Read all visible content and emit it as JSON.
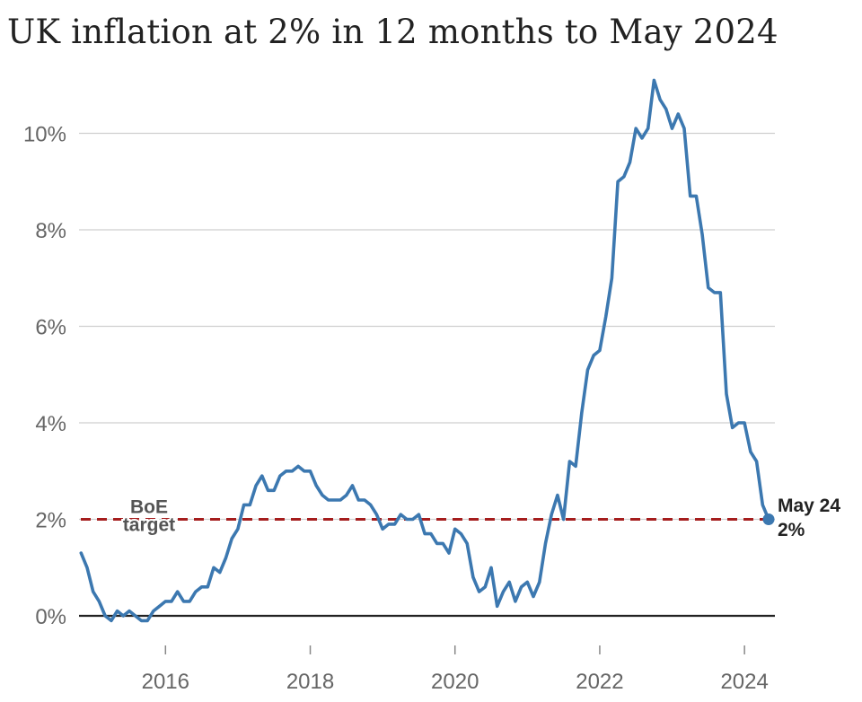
{
  "title": "UK inflation at 2% in 12 months to May 2024",
  "chart_data": {
    "type": "line",
    "title": "UK inflation at 2% in 12 months to May 2024",
    "xlabel": "",
    "ylabel": "",
    "x_range": [
      "2014-11",
      "2024-05"
    ],
    "ylim": [
      -0.4,
      11.2
    ],
    "y_ticks": [
      0,
      2,
      4,
      6,
      8,
      10
    ],
    "y_tick_labels": [
      "0%",
      "2%",
      "4%",
      "6%",
      "8%",
      "10%"
    ],
    "x_ticks": [
      2016,
      2018,
      2020,
      2022,
      2024
    ],
    "x_tick_labels": [
      "2016",
      "2018",
      "2020",
      "2022",
      "2024"
    ],
    "grid": true,
    "series": [
      {
        "color": "#3c78b0",
        "points": [
          [
            "2014-11",
            1.3
          ],
          [
            "2014-12",
            1.0
          ],
          [
            "2015-01",
            0.5
          ],
          [
            "2015-02",
            0.3
          ],
          [
            "2015-03",
            0.0
          ],
          [
            "2015-04",
            -0.1
          ],
          [
            "2015-05",
            0.1
          ],
          [
            "2015-06",
            0.0
          ],
          [
            "2015-07",
            0.1
          ],
          [
            "2015-08",
            0.0
          ],
          [
            "2015-09",
            -0.1
          ],
          [
            "2015-10",
            -0.1
          ],
          [
            "2015-11",
            0.1
          ],
          [
            "2015-12",
            0.2
          ],
          [
            "2016-01",
            0.3
          ],
          [
            "2016-02",
            0.3
          ],
          [
            "2016-03",
            0.5
          ],
          [
            "2016-04",
            0.3
          ],
          [
            "2016-05",
            0.3
          ],
          [
            "2016-06",
            0.5
          ],
          [
            "2016-07",
            0.6
          ],
          [
            "2016-08",
            0.6
          ],
          [
            "2016-09",
            1.0
          ],
          [
            "2016-10",
            0.9
          ],
          [
            "2016-11",
            1.2
          ],
          [
            "2016-12",
            1.6
          ],
          [
            "2017-01",
            1.8
          ],
          [
            "2017-02",
            2.3
          ],
          [
            "2017-03",
            2.3
          ],
          [
            "2017-04",
            2.7
          ],
          [
            "2017-05",
            2.9
          ],
          [
            "2017-06",
            2.6
          ],
          [
            "2017-07",
            2.6
          ],
          [
            "2017-08",
            2.9
          ],
          [
            "2017-09",
            3.0
          ],
          [
            "2017-10",
            3.0
          ],
          [
            "2017-11",
            3.1
          ],
          [
            "2017-12",
            3.0
          ],
          [
            "2018-01",
            3.0
          ],
          [
            "2018-02",
            2.7
          ],
          [
            "2018-03",
            2.5
          ],
          [
            "2018-04",
            2.4
          ],
          [
            "2018-05",
            2.4
          ],
          [
            "2018-06",
            2.4
          ],
          [
            "2018-07",
            2.5
          ],
          [
            "2018-08",
            2.7
          ],
          [
            "2018-09",
            2.4
          ],
          [
            "2018-10",
            2.4
          ],
          [
            "2018-11",
            2.3
          ],
          [
            "2018-12",
            2.1
          ],
          [
            "2019-01",
            1.8
          ],
          [
            "2019-02",
            1.9
          ],
          [
            "2019-03",
            1.9
          ],
          [
            "2019-04",
            2.1
          ],
          [
            "2019-05",
            2.0
          ],
          [
            "2019-06",
            2.0
          ],
          [
            "2019-07",
            2.1
          ],
          [
            "2019-08",
            1.7
          ],
          [
            "2019-09",
            1.7
          ],
          [
            "2019-10",
            1.5
          ],
          [
            "2019-11",
            1.5
          ],
          [
            "2019-12",
            1.3
          ],
          [
            "2020-01",
            1.8
          ],
          [
            "2020-02",
            1.7
          ],
          [
            "2020-03",
            1.5
          ],
          [
            "2020-04",
            0.8
          ],
          [
            "2020-05",
            0.5
          ],
          [
            "2020-06",
            0.6
          ],
          [
            "2020-07",
            1.0
          ],
          [
            "2020-08",
            0.2
          ],
          [
            "2020-09",
            0.5
          ],
          [
            "2020-10",
            0.7
          ],
          [
            "2020-11",
            0.3
          ],
          [
            "2020-12",
            0.6
          ],
          [
            "2021-01",
            0.7
          ],
          [
            "2021-02",
            0.4
          ],
          [
            "2021-03",
            0.7
          ],
          [
            "2021-04",
            1.5
          ],
          [
            "2021-05",
            2.1
          ],
          [
            "2021-06",
            2.5
          ],
          [
            "2021-07",
            2.0
          ],
          [
            "2021-08",
            3.2
          ],
          [
            "2021-09",
            3.1
          ],
          [
            "2021-10",
            4.2
          ],
          [
            "2021-11",
            5.1
          ],
          [
            "2021-12",
            5.4
          ],
          [
            "2022-01",
            5.5
          ],
          [
            "2022-02",
            6.2
          ],
          [
            "2022-03",
            7.0
          ],
          [
            "2022-04",
            9.0
          ],
          [
            "2022-05",
            9.1
          ],
          [
            "2022-06",
            9.4
          ],
          [
            "2022-07",
            10.1
          ],
          [
            "2022-08",
            9.9
          ],
          [
            "2022-09",
            10.1
          ],
          [
            "2022-10",
            11.1
          ],
          [
            "2022-11",
            10.7
          ],
          [
            "2022-12",
            10.5
          ],
          [
            "2023-01",
            10.1
          ],
          [
            "2023-02",
            10.4
          ],
          [
            "2023-03",
            10.1
          ],
          [
            "2023-04",
            8.7
          ],
          [
            "2023-05",
            8.7
          ],
          [
            "2023-06",
            7.9
          ],
          [
            "2023-07",
            6.8
          ],
          [
            "2023-08",
            6.7
          ],
          [
            "2023-09",
            6.7
          ],
          [
            "2023-10",
            4.6
          ],
          [
            "2023-11",
            3.9
          ],
          [
            "2023-12",
            4.0
          ],
          [
            "2024-01",
            4.0
          ],
          [
            "2024-02",
            3.4
          ],
          [
            "2024-03",
            3.2
          ],
          [
            "2024-04",
            2.3
          ],
          [
            "2024-05",
            2.0
          ]
        ]
      }
    ],
    "reference_line": {
      "y": 2,
      "color": "#a51d1d",
      "style": "dashed",
      "label_lines": [
        "BoE",
        "target"
      ]
    },
    "end_label": {
      "x": "2024-05",
      "y": 2.0,
      "lines": [
        "May 24",
        "2%"
      ]
    }
  }
}
